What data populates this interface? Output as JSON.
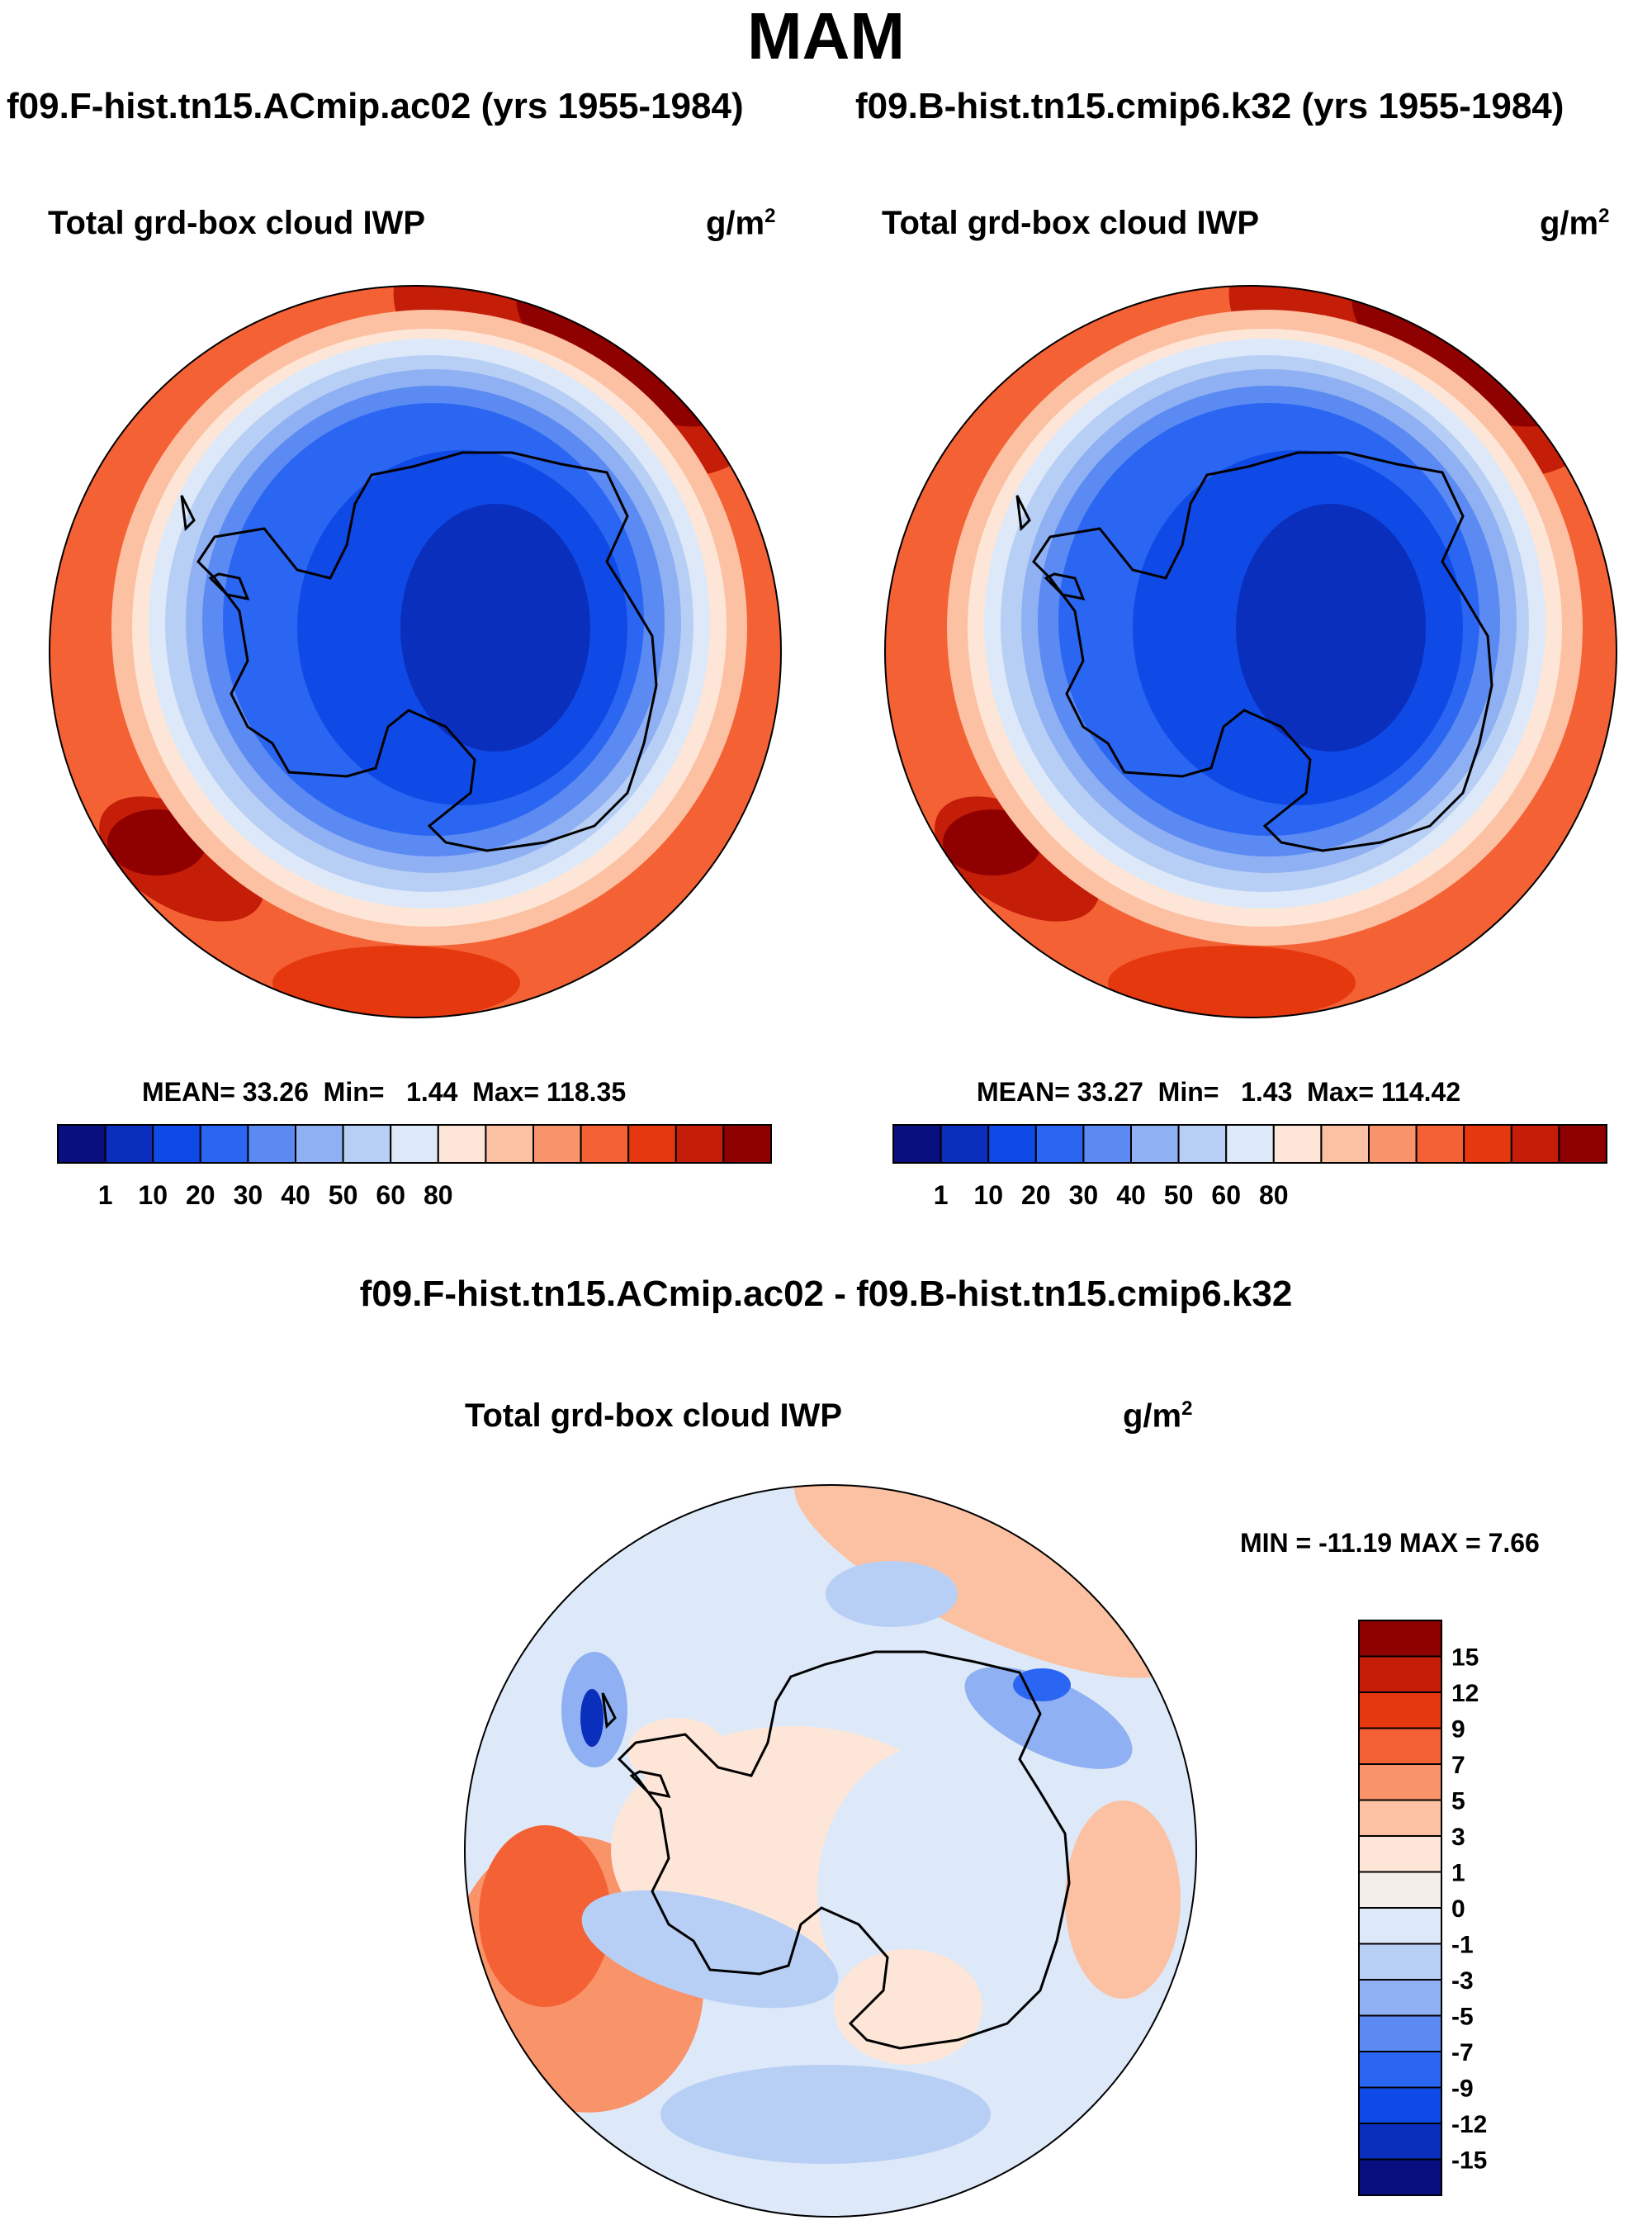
{
  "season": "MAM",
  "variable": "Total grd-box cloud IWP",
  "units": "g/m",
  "units_exponent": "2",
  "palette": {
    "blue": [
      "#0a0f80",
      "#0b2fbd",
      "#0f4ae6",
      "#2b66f2",
      "#5a8af2",
      "#8fb0f2",
      "#b8cff5",
      "#dde9f8"
    ],
    "red": [
      "#fde6d7",
      "#fcc1a2",
      "#f99369",
      "#f46135",
      "#e6380f",
      "#c41d08",
      "#8f0000"
    ]
  },
  "panels": [
    {
      "id": "left",
      "run": "f09.F-hist.tn15.ACmip.ac02 (yrs 1955-1984)",
      "stats": {
        "mean_label": "MEAN=",
        "mean": "33.26",
        "min_label": "Min=",
        "min": "1.44",
        "max_label": "Max=",
        "max": "118.35"
      }
    },
    {
      "id": "right",
      "run": "f09.B-hist.tn15.cmip6.k32 (yrs 1955-1984)",
      "stats": {
        "mean_label": "MEAN=",
        "mean": "33.27",
        "min_label": "Min=",
        "min": "1.43",
        "max_label": "Max=",
        "max": "114.42"
      }
    }
  ],
  "colorbar_top": {
    "labels": [
      "1",
      "10",
      "20",
      "30",
      "40",
      "50",
      "60",
      "80"
    ],
    "colors": [
      "#0a0f80",
      "#0b2fbd",
      "#0f4ae6",
      "#2b66f2",
      "#5a8af2",
      "#8fb0f2",
      "#b8cff5",
      "#dde9f8",
      "#fde6d7",
      "#fcc1a2",
      "#f99369",
      "#f46135",
      "#e6380f",
      "#c41d08",
      "#8f0000"
    ]
  },
  "difference": {
    "title": "f09.F-hist.tn15.ACmip.ac02 - f09.B-hist.tn15.cmip6.k32",
    "min_max": "MIN = -11.19 MAX =   7.66",
    "colorbar": {
      "labels": [
        "15",
        "12",
        "9",
        "7",
        "5",
        "3",
        "1",
        "0",
        "-1",
        "-3",
        "-5",
        "-7",
        "-9",
        "-12",
        "-15"
      ],
      "colors": [
        "#8f0000",
        "#c41d08",
        "#e6380f",
        "#f46135",
        "#f99369",
        "#fcc1a2",
        "#fde6d7",
        "#f3eee9",
        "#dde9f8",
        "#b8cff5",
        "#8fb0f2",
        "#5a8af2",
        "#2b66f2",
        "#0f4ae6",
        "#0b2fbd",
        "#0a0f80"
      ]
    }
  }
}
